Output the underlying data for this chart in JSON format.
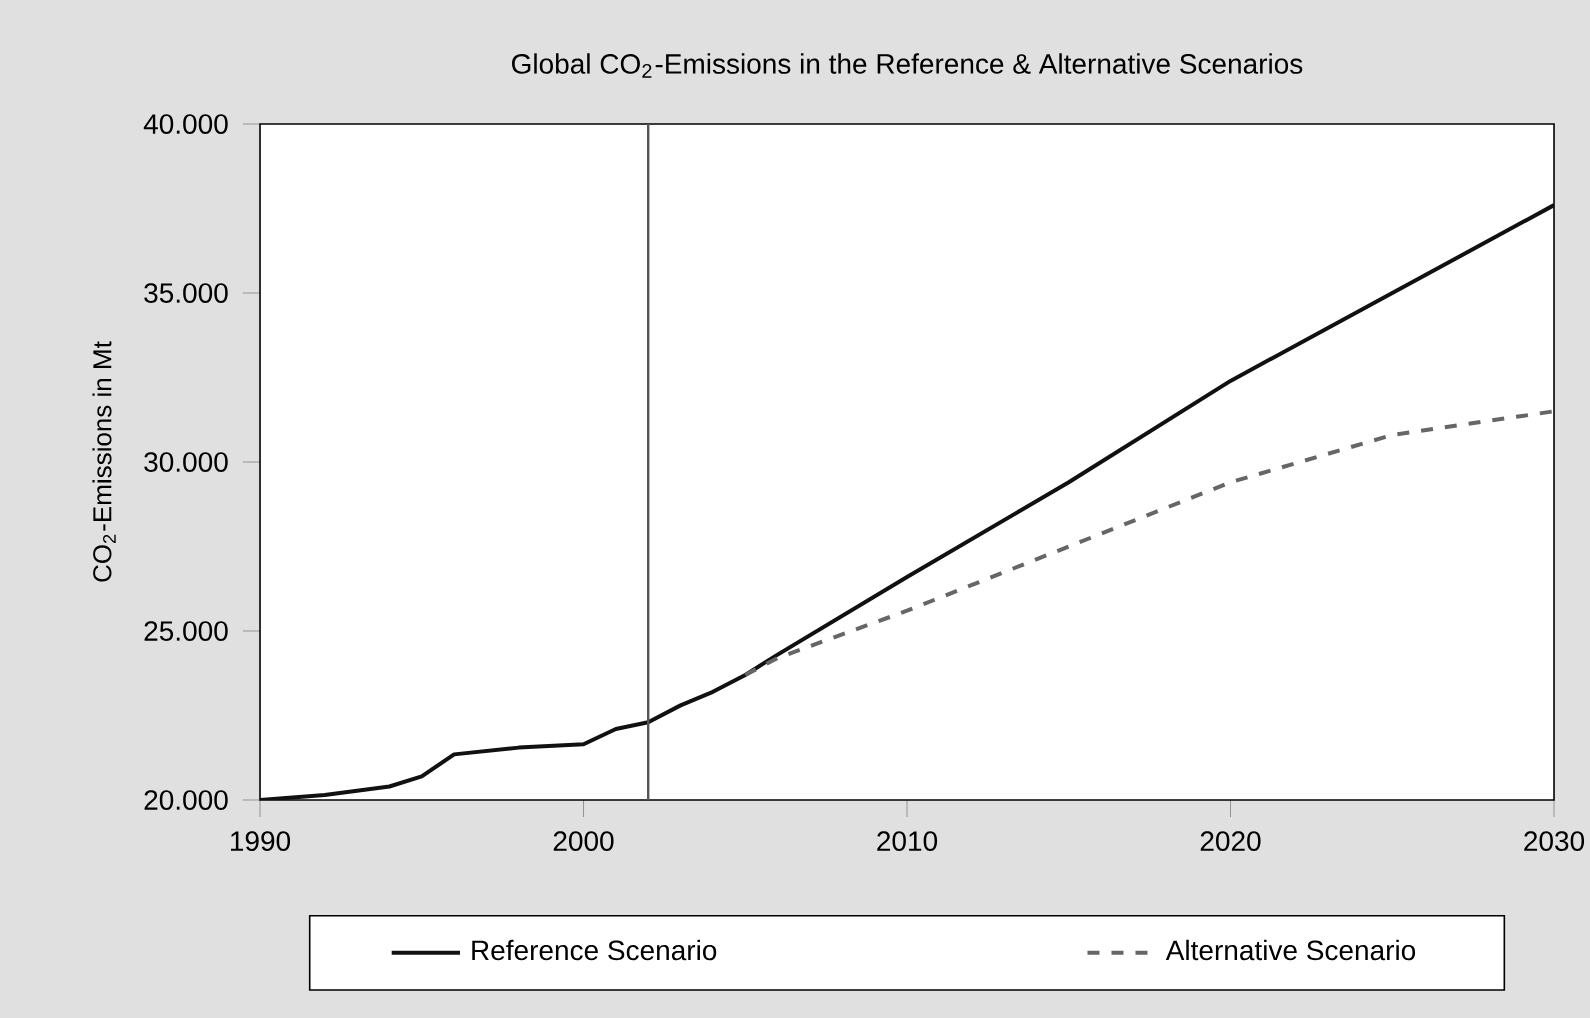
{
  "chart_data": {
    "type": "line",
    "title": "Global CO$_{2}$-Emissions in the Reference & Alternative Scenarios",
    "ylabel": "CO$_{2}$-Emissions in Mt",
    "xlim": [
      1990,
      2030
    ],
    "xticks": [
      1990,
      2000,
      2010,
      2020,
      2030
    ],
    "ylim": [
      20000,
      40000
    ],
    "yticks": [
      {
        "value": 20000,
        "label": "20.000"
      },
      {
        "value": 25000,
        "label": "25.000"
      },
      {
        "value": 30000,
        "label": "30.000"
      },
      {
        "value": 35000,
        "label": "35.000"
      },
      {
        "value": 40000,
        "label": "40.000"
      }
    ],
    "grid": false,
    "legend": "bottom",
    "ref_lines": [
      {
        "axis": "x",
        "value": 2002,
        "color": "#555555"
      }
    ],
    "series": [
      {
        "name": "Reference Scenario",
        "color": "#111111",
        "line_style": "solid",
        "x": [
          1990,
          1992,
          1994,
          1995,
          1996,
          1998,
          2000,
          2001,
          2002,
          2003,
          2004,
          2005,
          2006,
          2010,
          2015,
          2020,
          2025,
          2030
        ],
        "values": [
          20000,
          20150,
          20400,
          20700,
          21350,
          21550,
          21650,
          22100,
          22300,
          22800,
          23200,
          23700,
          24300,
          26600,
          29400,
          32400,
          35000,
          37600
        ]
      },
      {
        "name": "Alternative Scenario",
        "color": "#666666",
        "line_style": "dashed",
        "x": [
          2005,
          2006,
          2010,
          2015,
          2020,
          2025,
          2030
        ],
        "values": [
          23700,
          24200,
          25600,
          27500,
          29400,
          30800,
          31500
        ]
      }
    ]
  }
}
